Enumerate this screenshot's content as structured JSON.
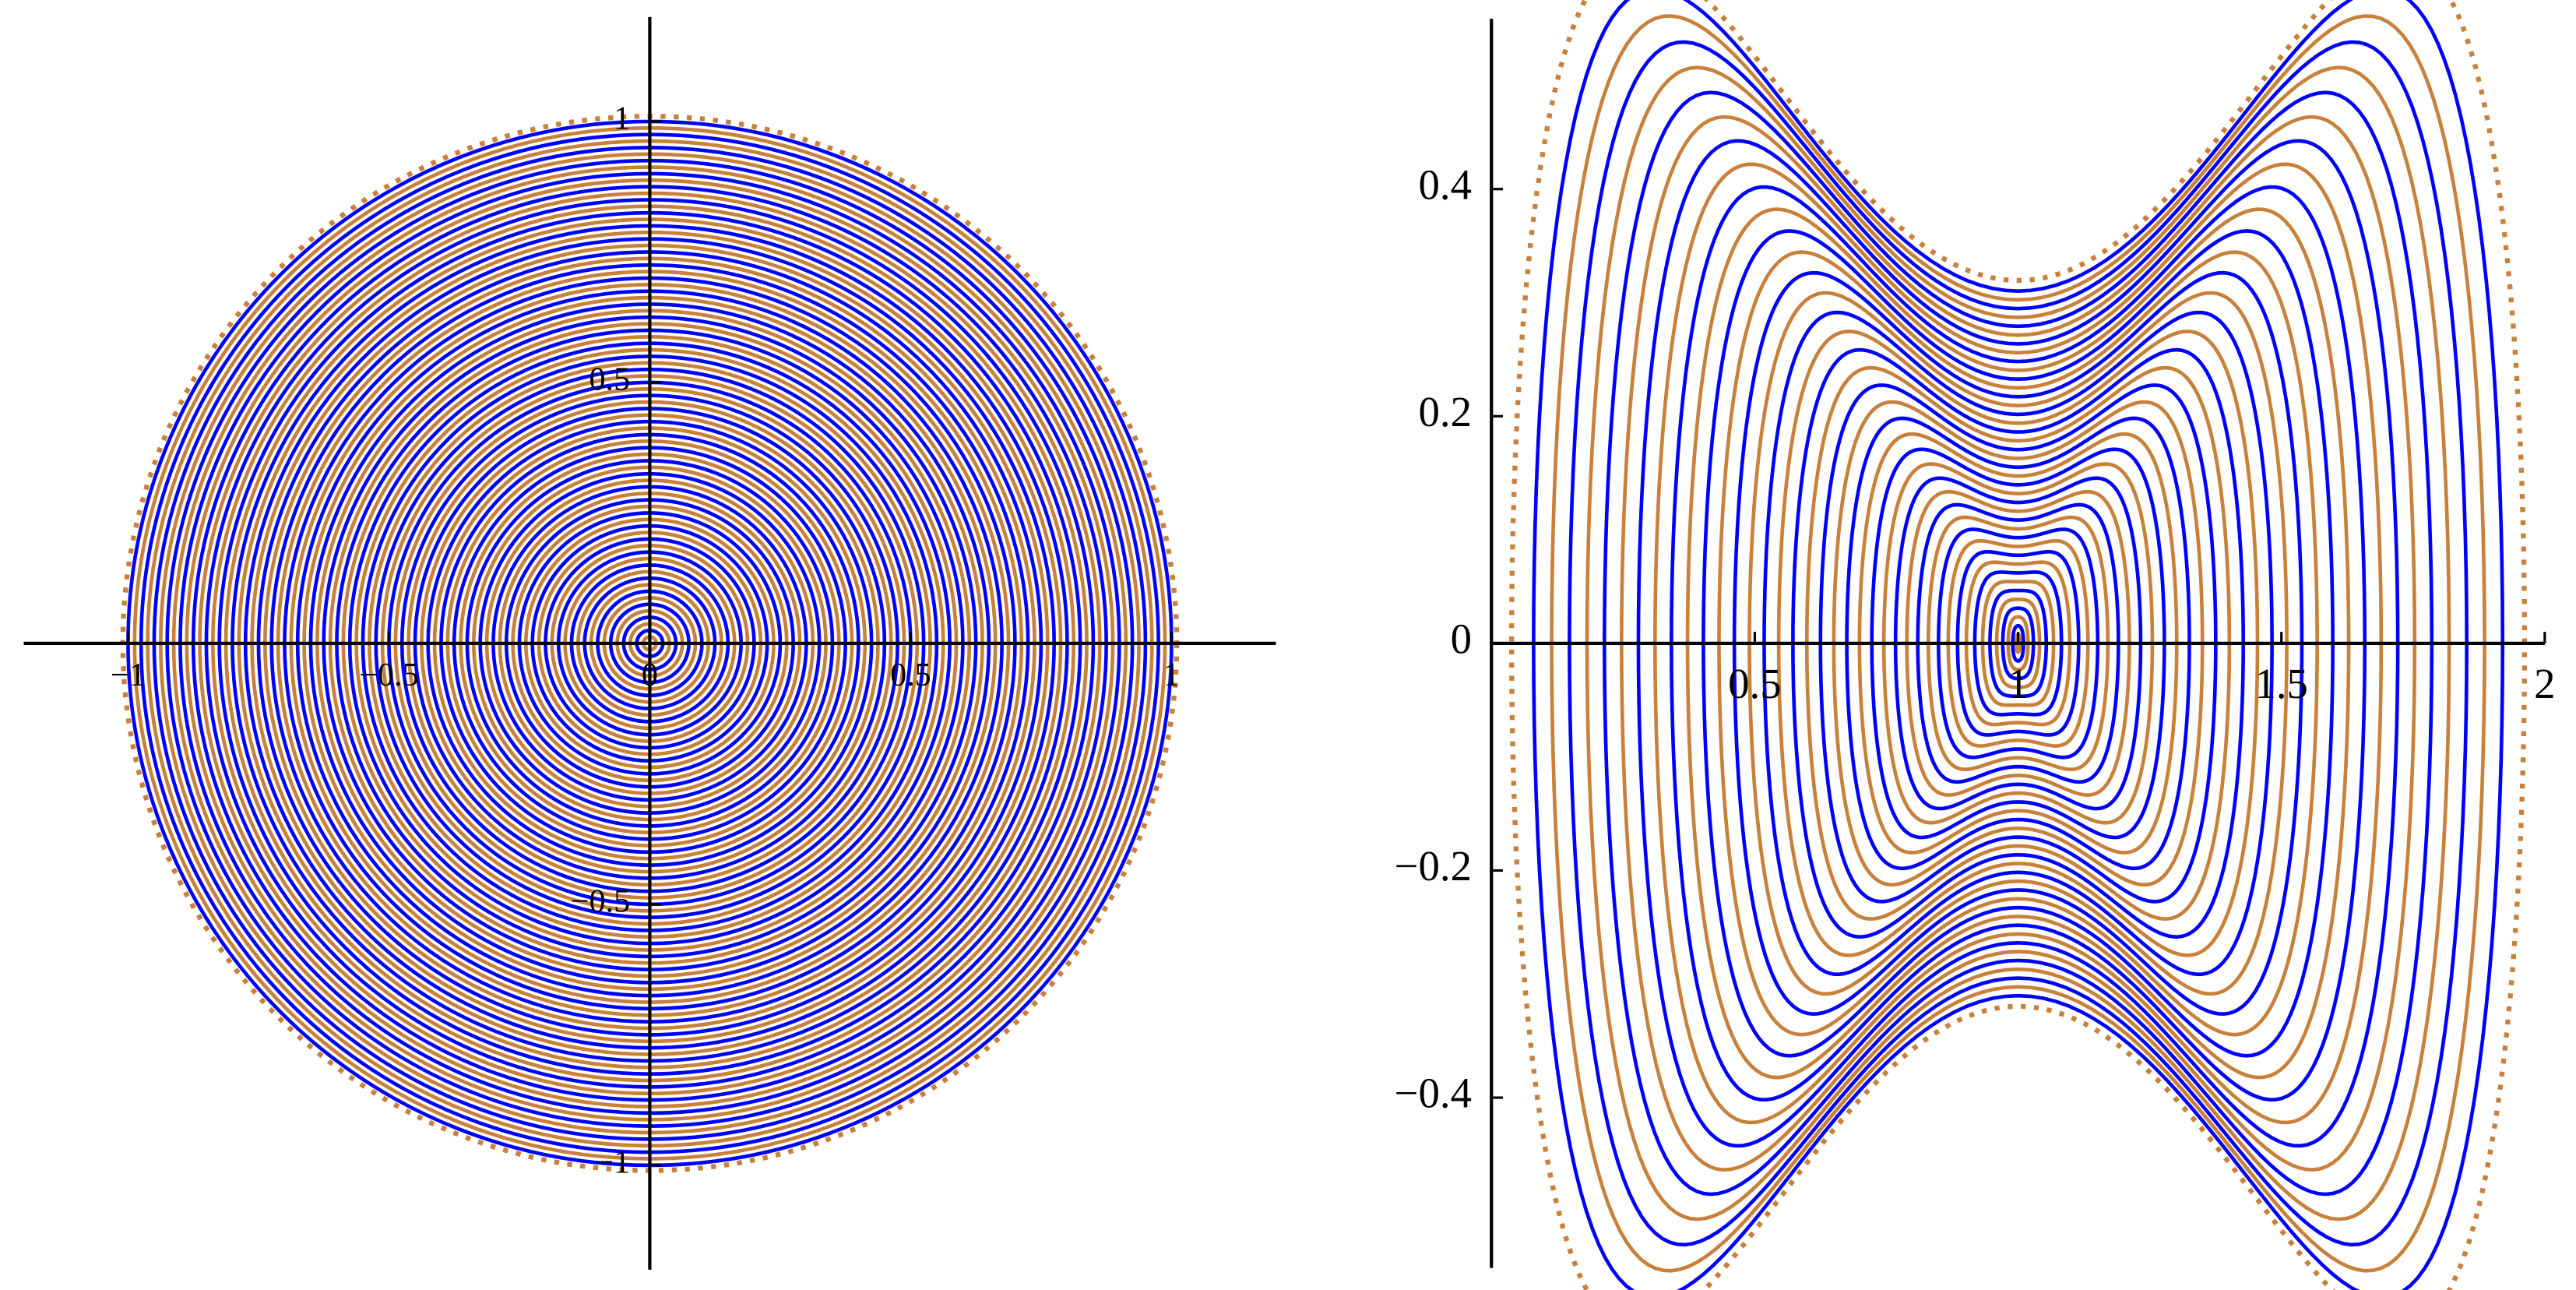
{
  "chart_data": [
    {
      "type": "rings",
      "xlim": [
        -1.2,
        1.2
      ],
      "ylim": [
        -1.2,
        1.2
      ],
      "xticks": [
        {
          "value": -1,
          "label": "−1"
        },
        {
          "value": -0.5,
          "label": "−0.5"
        },
        0,
        0.5,
        1
      ],
      "yticks": [
        {
          "value": -1,
          "label": "−1"
        },
        {
          "value": -0.5,
          "label": "−0.5"
        },
        0.5,
        1
      ],
      "series": [
        {
          "color": "#c8803a",
          "dotted": false,
          "levels": [
            0.0125,
            0.0375,
            0.0625,
            0.0875,
            0.1125,
            0.1375,
            0.1625,
            0.1875,
            0.2125,
            0.2375,
            0.2625,
            0.2875,
            0.3125,
            0.3375,
            0.3625,
            0.3875,
            0.4125,
            0.4375,
            0.4625,
            0.4875,
            0.5125,
            0.5375,
            0.5625,
            0.5875,
            0.6125,
            0.6375,
            0.6625,
            0.6875,
            0.7125,
            0.7375,
            0.7625,
            0.7875,
            0.8125,
            0.8375,
            0.8625,
            0.8875,
            0.9125,
            0.9375,
            0.9625,
            0.9875
          ]
        },
        {
          "color": "#0000ff",
          "dotted": false,
          "levels": [
            0.025,
            0.05,
            0.075,
            0.1,
            0.125,
            0.15,
            0.175,
            0.2,
            0.225,
            0.25,
            0.275,
            0.3,
            0.325,
            0.35,
            0.375,
            0.4,
            0.425,
            0.45,
            0.475,
            0.5,
            0.525,
            0.55,
            0.575,
            0.6,
            0.625,
            0.65,
            0.675,
            0.7,
            0.725,
            0.75,
            0.775,
            0.8,
            0.825,
            0.85,
            0.875,
            0.9,
            0.925,
            0.95,
            0.975,
            1.0
          ]
        },
        {
          "color": "#c8803a",
          "dotted": true,
          "levels": [
            1.01
          ]
        }
      ]
    },
    {
      "type": "ovals",
      "xlim": [
        0,
        2
      ],
      "ylim": [
        -0.55,
        0.55
      ],
      "xticks": [
        0.5,
        1,
        1.5,
        2
      ],
      "yticks": [
        {
          "value": -0.4,
          "label": "−0.4"
        },
        {
          "value": -0.2,
          "label": "−0.2"
        },
        0,
        0.2,
        0.4
      ],
      "series": [
        {
          "color": "#c8803a",
          "dotted": false,
          "levels": [
            0.025,
            0.075,
            0.125,
            0.175,
            0.225,
            0.275,
            0.325,
            0.375,
            0.425,
            0.475,
            0.525,
            0.575,
            0.625,
            0.675,
            0.725,
            0.775,
            0.825,
            0.875,
            0.925,
            0.975
          ]
        },
        {
          "color": "#0000ff",
          "dotted": false,
          "levels": [
            0.05,
            0.1,
            0.15,
            0.2,
            0.25,
            0.3,
            0.35,
            0.4,
            0.45,
            0.5,
            0.55,
            0.6,
            0.65,
            0.7,
            0.75,
            0.8,
            0.85,
            0.9,
            0.95,
            1.0
          ]
        },
        {
          "color": "#c8803a",
          "dotted": true,
          "levels": [
            1.03
          ]
        }
      ]
    }
  ]
}
